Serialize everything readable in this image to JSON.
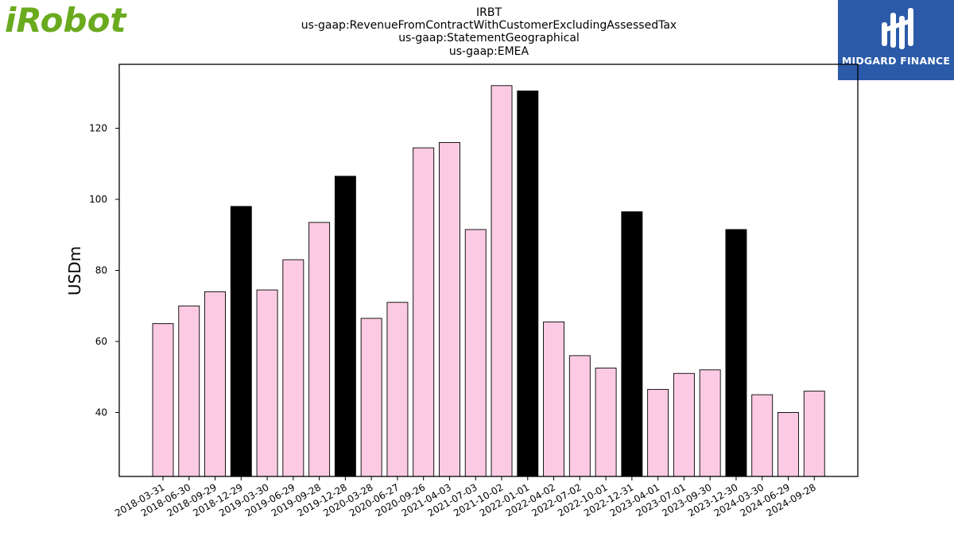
{
  "logos": {
    "left_brand": "iRobot",
    "left_color": "#6aaa1e",
    "right_brand": "MIDGARD FINANCE",
    "right_bg": "#2b5aa8"
  },
  "chart_data": {
    "type": "bar",
    "title_lines": [
      "IRBT",
      "us-gaap:RevenueFromContractWithCustomerExcludingAssessedTax",
      "us-gaap:StatementGeographical",
      "us-gaap:EMEA"
    ],
    "xlabel": "",
    "ylabel": "USDm",
    "ylim": [
      22,
      138
    ],
    "yticks": [
      40,
      60,
      80,
      100,
      120
    ],
    "grid": false,
    "legend": "none",
    "colors": {
      "quarter": "#fccbe3",
      "year_end": "#000000",
      "edge": "#000000"
    },
    "categories": [
      "2018-03-31",
      "2018-06-30",
      "2018-09-29",
      "2018-12-29",
      "2019-03-30",
      "2019-06-29",
      "2019-09-28",
      "2019-12-28",
      "2020-03-28",
      "2020-06-27",
      "2020-09-26",
      "2021-04-03",
      "2021-07-03",
      "2021-10-02",
      "2022-01-01",
      "2022-04-02",
      "2022-07-02",
      "2022-10-01",
      "2022-12-31",
      "2023-04-01",
      "2023-07-01",
      "2023-09-30",
      "2023-12-30",
      "2024-03-30",
      "2024-06-29",
      "2024-09-28"
    ],
    "values": [
      65,
      70,
      74,
      98,
      74.5,
      83,
      93.5,
      106.5,
      66.5,
      71,
      114.5,
      116,
      91.5,
      132,
      130.5,
      65.5,
      56,
      52.5,
      96.5,
      46.5,
      51,
      52,
      91.5,
      45,
      40,
      46
    ],
    "highlight": [
      false,
      false,
      false,
      true,
      false,
      false,
      false,
      true,
      false,
      false,
      false,
      false,
      false,
      false,
      true,
      false,
      false,
      false,
      true,
      false,
      false,
      false,
      true,
      false,
      false,
      false
    ]
  }
}
